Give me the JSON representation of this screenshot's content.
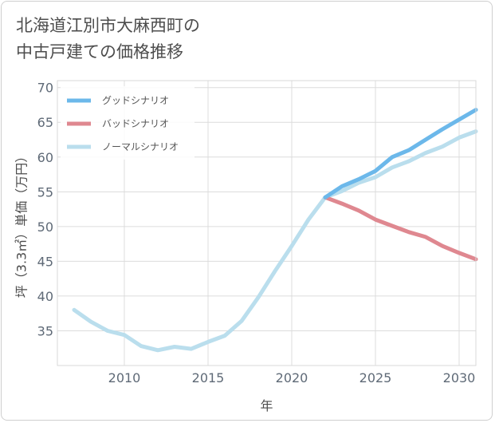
{
  "title_line1": "北海道江別市大麻西町の",
  "title_line2": "中古戸建ての価格推移",
  "chart_data": {
    "type": "line",
    "xlabel": "年",
    "ylabel": "坪（3.3㎡）単価（万円）",
    "xlim": [
      2006,
      2031
    ],
    "ylim": [
      30,
      71
    ],
    "xticks": [
      2010,
      2015,
      2020,
      2025,
      2030
    ],
    "yticks": [
      35,
      40,
      45,
      50,
      55,
      60,
      65,
      70
    ],
    "grid": true,
    "legend_position": "top-left",
    "series": [
      {
        "name": "グッドシナリオ",
        "color": "#6cb8ea",
        "x": [
          2022,
          2023,
          2024,
          2025,
          2026,
          2027,
          2028,
          2029,
          2030,
          2031
        ],
        "y": [
          54.2,
          55.8,
          56.8,
          58.0,
          60.0,
          61.0,
          62.5,
          64.0,
          65.4,
          66.8
        ]
      },
      {
        "name": "バッドシナリオ",
        "color": "#df8890",
        "x": [
          2022,
          2023,
          2024,
          2025,
          2026,
          2027,
          2028,
          2029,
          2030,
          2031
        ],
        "y": [
          54.2,
          53.3,
          52.3,
          51.0,
          50.1,
          49.2,
          48.5,
          47.2,
          46.2,
          45.3
        ]
      },
      {
        "name": "ノーマルシナリオ",
        "color": "#badeed",
        "x": [
          2007,
          2008,
          2009,
          2010,
          2011,
          2012,
          2013,
          2014,
          2015,
          2016,
          2017,
          2018,
          2019,
          2020,
          2021,
          2022,
          2023,
          2024,
          2025,
          2026,
          2027,
          2028,
          2029,
          2030,
          2031
        ],
        "y": [
          38.0,
          36.3,
          35.0,
          34.4,
          32.8,
          32.2,
          32.7,
          32.4,
          33.4,
          34.3,
          36.4,
          39.8,
          43.6,
          47.2,
          51.0,
          54.2,
          55.1,
          56.3,
          57.1,
          58.5,
          59.4,
          60.6,
          61.5,
          62.8,
          63.7
        ]
      }
    ]
  }
}
